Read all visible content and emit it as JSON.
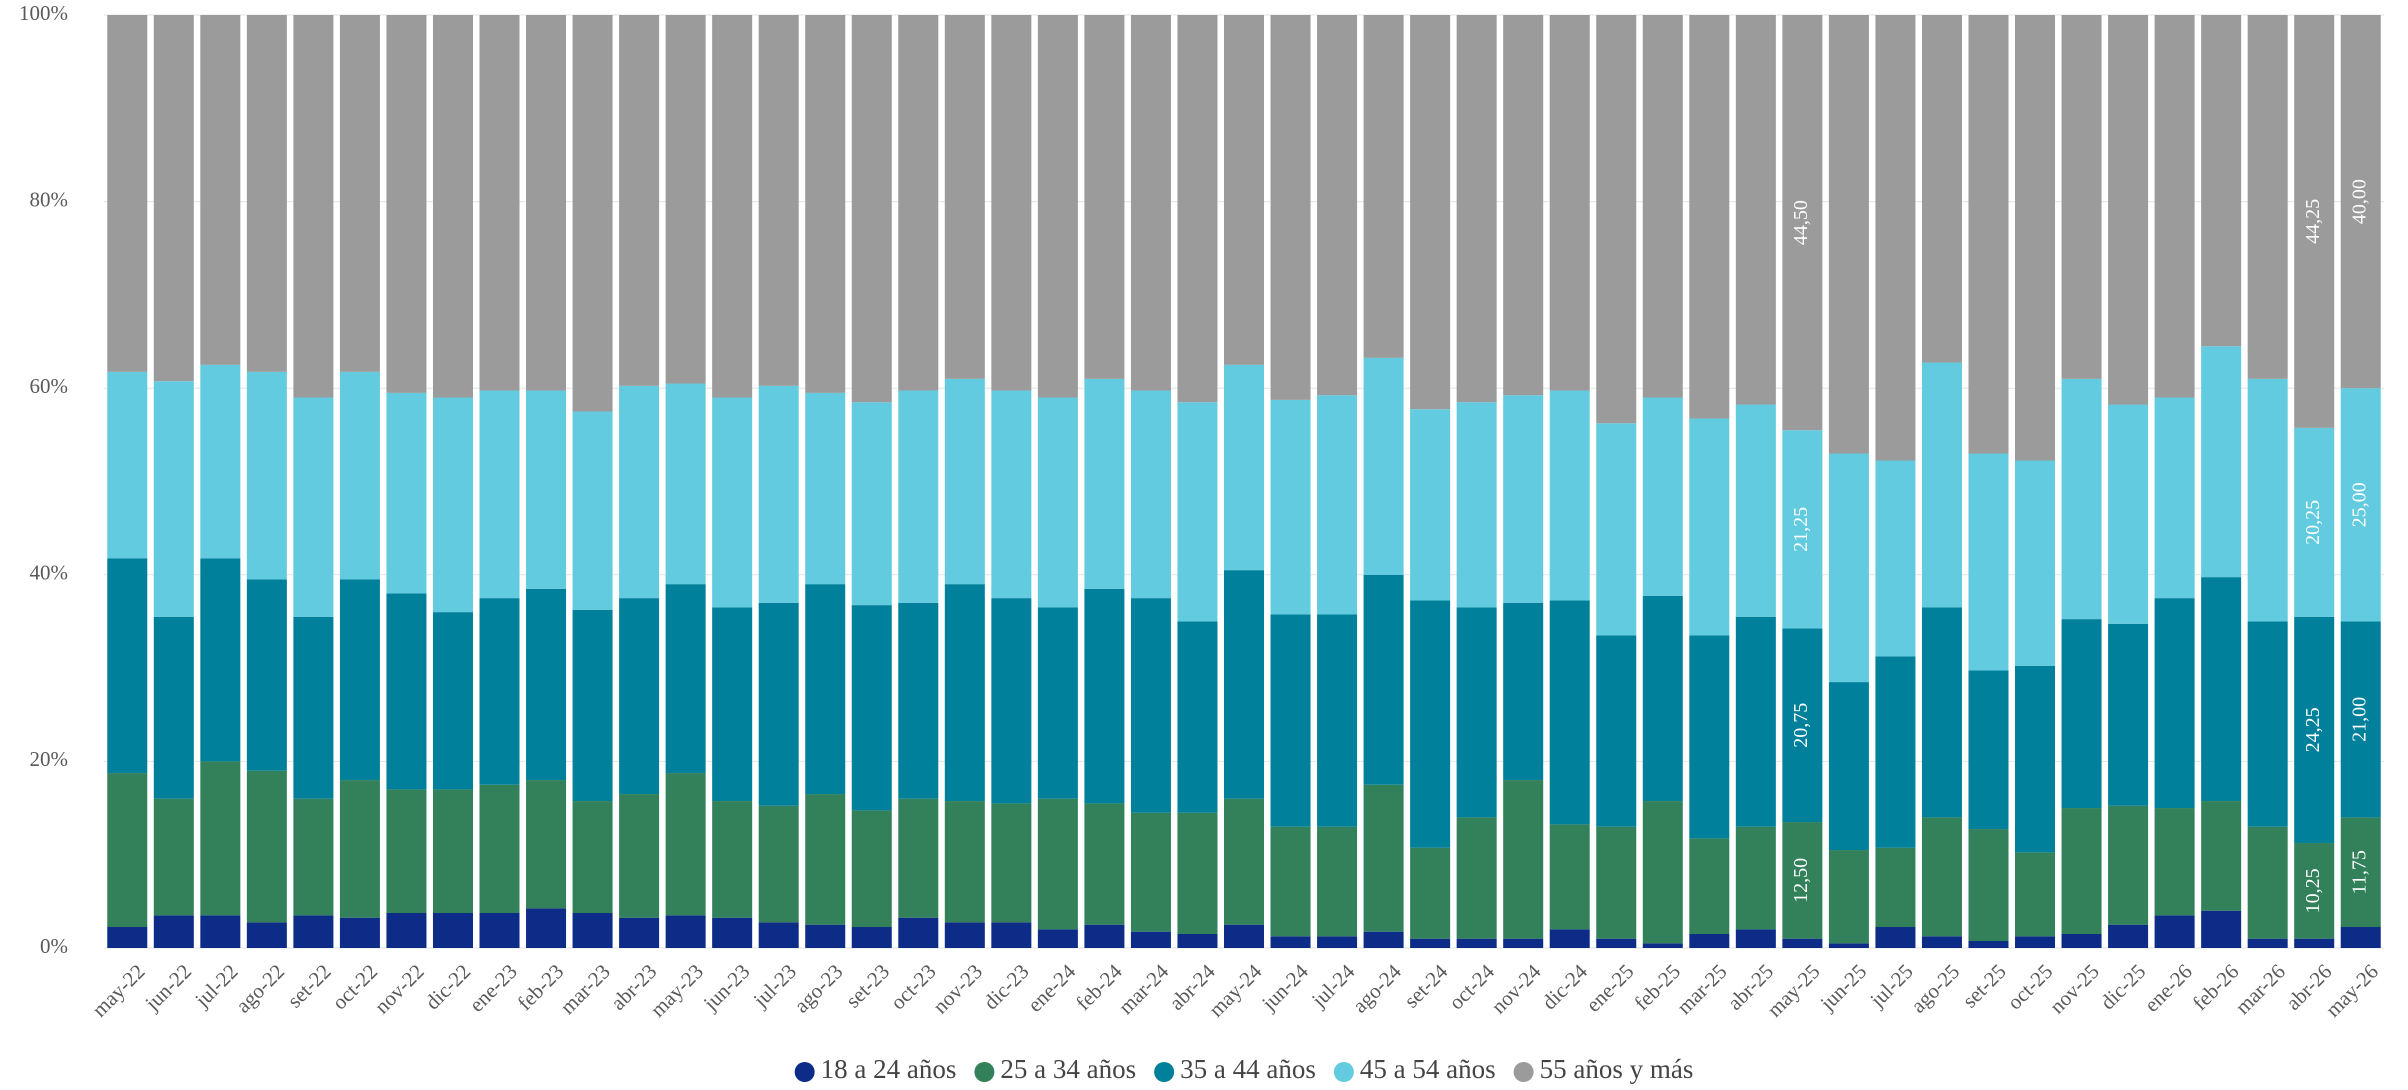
{
  "chart_data": {
    "type": "stacked_bar_100",
    "categories": [
      "may-22",
      "jun-22",
      "jul-22",
      "ago-22",
      "set-22",
      "oct-22",
      "nov-22",
      "dic-22",
      "ene-23",
      "feb-23",
      "mar-23",
      "abr-23",
      "may-23",
      "jun-23",
      "jul-23",
      "ago-23",
      "set-23",
      "oct-23",
      "nov-23",
      "dic-23",
      "ene-24",
      "feb-24",
      "mar-24",
      "abr-24",
      "may-24",
      "jun-24",
      "jul-24",
      "ago-24",
      "set-24",
      "oct-24",
      "nov-24",
      "dic-24",
      "ene-25",
      "feb-25",
      "mar-25",
      "abr-25",
      "may-25",
      "jun-25",
      "jul-25",
      "ago-25",
      "set-25",
      "oct-25",
      "nov-25",
      "dic-25",
      "ene-26",
      "feb-26",
      "mar-26",
      "abr-26",
      "may-26"
    ],
    "series": [
      {
        "name": "18 a 24 años",
        "color": "#0d2c87",
        "values": [
          2.25,
          3.5,
          3.5,
          2.75,
          3.5,
          3.25,
          3.75,
          3.75,
          3.75,
          4.25,
          3.75,
          3.25,
          3.5,
          3.25,
          2.75,
          2.5,
          2.25,
          3.25,
          2.75,
          2.75,
          2,
          2.5,
          1.75,
          1.5,
          2.5,
          1.25,
          1.25,
          1.75,
          1,
          1,
          1,
          2,
          1,
          0.5,
          1.5,
          2,
          1,
          0.5,
          2.25,
          1.25,
          0.75,
          1.25,
          1.5,
          2.5,
          3.5,
          4,
          1,
          1,
          2.25
        ]
      },
      {
        "name": "25 a 34 años",
        "color": "#33815a",
        "values": [
          16.5,
          12.5,
          16.5,
          16.25,
          12.5,
          14.75,
          13.25,
          13.25,
          13.75,
          13.75,
          12,
          13.25,
          15.25,
          12.5,
          12.5,
          14,
          12.5,
          12.75,
          13,
          12.75,
          14,
          13,
          12.75,
          13,
          13.5,
          11.75,
          11.75,
          15.75,
          9.75,
          13,
          17,
          11.25,
          12,
          15.25,
          10.25,
          11,
          12.5,
          10,
          8.5,
          12.75,
          12,
          9,
          13.5,
          12.75,
          11.5,
          11.75,
          12,
          10.25,
          11.75
        ],
        "value_labels": [
          null,
          null,
          null,
          null,
          null,
          null,
          null,
          null,
          null,
          null,
          null,
          null,
          null,
          null,
          null,
          null,
          null,
          null,
          null,
          null,
          null,
          null,
          null,
          null,
          null,
          null,
          null,
          null,
          null,
          null,
          null,
          null,
          null,
          null,
          null,
          null,
          "12,50",
          null,
          null,
          null,
          null,
          null,
          null,
          null,
          null,
          null,
          null,
          "10,25",
          "11,75"
        ]
      },
      {
        "name": "35 a 44 años",
        "color": "#00809a",
        "values": [
          23,
          19.5,
          21.75,
          20.5,
          19.5,
          21.5,
          21,
          19,
          20,
          20.5,
          20.5,
          21,
          20.25,
          20.75,
          21.75,
          22.5,
          22,
          21,
          23.25,
          22,
          20.5,
          23,
          23,
          20.5,
          24.5,
          22.75,
          22.75,
          22.5,
          26.5,
          22.5,
          19,
          24,
          20.5,
          22,
          21.75,
          22.5,
          20.75,
          18,
          20.5,
          22.5,
          17,
          20,
          20.25,
          19.5,
          22.5,
          24,
          22,
          24.25,
          21
        ],
        "value_labels": [
          null,
          null,
          null,
          null,
          null,
          null,
          null,
          null,
          null,
          null,
          null,
          null,
          null,
          null,
          null,
          null,
          null,
          null,
          null,
          null,
          null,
          null,
          null,
          null,
          null,
          null,
          null,
          null,
          null,
          null,
          null,
          null,
          null,
          null,
          null,
          null,
          "20,75",
          null,
          null,
          null,
          null,
          null,
          null,
          null,
          null,
          null,
          null,
          "24,25",
          "21,00"
        ]
      },
      {
        "name": "45 a 54 años",
        "color": "#63cbdf",
        "values": [
          20,
          25.25,
          20.75,
          22.25,
          23.5,
          22.25,
          21.5,
          23,
          22.25,
          21.25,
          21.25,
          22.75,
          21.5,
          22.5,
          23.25,
          20.5,
          21.75,
          22.75,
          22,
          22.25,
          22.5,
          22.5,
          22.25,
          23.5,
          22,
          23,
          23.5,
          23.25,
          20.5,
          22,
          22.25,
          22.5,
          22.75,
          21.25,
          23.25,
          22.75,
          21.25,
          24.5,
          21,
          26.25,
          23.25,
          22,
          25.75,
          23.5,
          21.5,
          24.75,
          26,
          20.25,
          25
        ],
        "value_labels": [
          null,
          null,
          null,
          null,
          null,
          null,
          null,
          null,
          null,
          null,
          null,
          null,
          null,
          null,
          null,
          null,
          null,
          null,
          null,
          null,
          null,
          null,
          null,
          null,
          null,
          null,
          null,
          null,
          null,
          null,
          null,
          null,
          null,
          null,
          null,
          null,
          "21,25",
          null,
          null,
          null,
          null,
          null,
          null,
          null,
          null,
          null,
          null,
          "20,25",
          "25,00"
        ]
      },
      {
        "name": "55 años y más",
        "color": "#9b9b9b",
        "values": [
          38.25,
          39.25,
          37.5,
          38.25,
          41,
          38.25,
          40.5,
          41,
          40.25,
          40.25,
          42.5,
          39.75,
          39.5,
          41,
          39.75,
          40.5,
          41.5,
          40.25,
          39,
          40.25,
          41,
          39,
          40.25,
          41.5,
          37.5,
          41.25,
          40.75,
          36.75,
          42.25,
          41.5,
          40.75,
          40.25,
          43.75,
          41,
          43.25,
          41.75,
          44.5,
          47,
          47.75,
          37.25,
          47,
          47.75,
          39,
          41.75,
          41,
          35.5,
          39,
          44.25,
          40
        ],
        "value_labels": [
          null,
          null,
          null,
          null,
          null,
          null,
          null,
          null,
          null,
          null,
          null,
          null,
          null,
          null,
          null,
          null,
          null,
          null,
          null,
          null,
          null,
          null,
          null,
          null,
          null,
          null,
          null,
          null,
          null,
          null,
          null,
          null,
          null,
          null,
          null,
          null,
          "44,50",
          null,
          null,
          null,
          null,
          null,
          null,
          null,
          null,
          null,
          null,
          "44,25",
          "40,00"
        ]
      }
    ],
    "ylim": [
      0,
      100
    ],
    "yticks": [
      {
        "value": 0,
        "label": "0%"
      },
      {
        "value": 20,
        "label": "20%"
      },
      {
        "value": 40,
        "label": "40%"
      },
      {
        "value": 60,
        "label": "60%"
      },
      {
        "value": 80,
        "label": "80%"
      },
      {
        "value": 100,
        "label": "100%"
      }
    ],
    "grid": true,
    "legend": "bottom"
  }
}
